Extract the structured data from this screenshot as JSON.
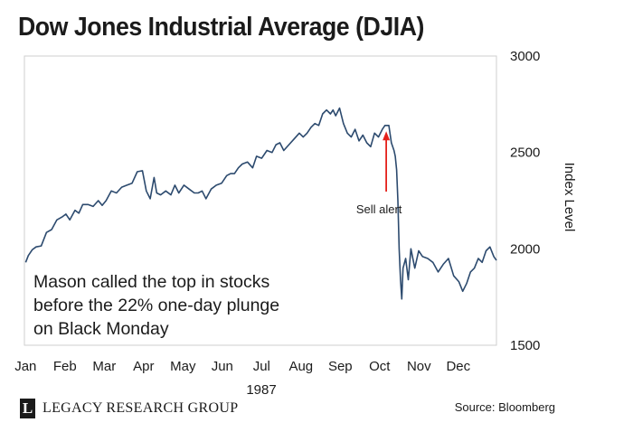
{
  "chart_data": {
    "type": "line",
    "title": "Dow Jones Industrial Average (DJIA)",
    "xlabel": "1987",
    "ylabel": "Index Level",
    "ylim": [
      1500,
      3000
    ],
    "yticks": [
      1500,
      2000,
      2500,
      3000
    ],
    "y_axis_side": "right",
    "months": [
      "Jan",
      "Feb",
      "Mar",
      "Apr",
      "May",
      "Jun",
      "Jul",
      "Aug",
      "Sep",
      "Oct",
      "Nov",
      "Dec"
    ],
    "x_unit": "day of year 1987 (1-365)",
    "grid": false,
    "legend": "none",
    "line_color": "#2c4a6e",
    "series": [
      {
        "name": "",
        "x": [
          2,
          4,
          7,
          10,
          14,
          18,
          22,
          26,
          30,
          33,
          36,
          40,
          43,
          46,
          50,
          54,
          58,
          61,
          64,
          68,
          72,
          76,
          80,
          84,
          88,
          92,
          95,
          98,
          101,
          103,
          106,
          110,
          114,
          117,
          120,
          124,
          128,
          132,
          135,
          138,
          141,
          145,
          149,
          153,
          157,
          160,
          163,
          166,
          169,
          173,
          177,
          180,
          184,
          188,
          192,
          195,
          198,
          201,
          205,
          209,
          213,
          216,
          219,
          222,
          225,
          228,
          231,
          234,
          237,
          239,
          241,
          244,
          247,
          250,
          253,
          256,
          259,
          262,
          265,
          268,
          271,
          274,
          277,
          279,
          282,
          284,
          286,
          287,
          288,
          289,
          290,
          291,
          292,
          293,
          295,
          297,
          299,
          302,
          305,
          308,
          312,
          316,
          320,
          324,
          328,
          332,
          336,
          339,
          342,
          345,
          348,
          351,
          354,
          357,
          360,
          363,
          365
        ],
        "values": [
          1930,
          1965,
          1995,
          2010,
          2015,
          2085,
          2100,
          2150,
          2165,
          2180,
          2150,
          2200,
          2185,
          2230,
          2230,
          2220,
          2250,
          2225,
          2250,
          2300,
          2290,
          2320,
          2330,
          2340,
          2400,
          2405,
          2300,
          2260,
          2370,
          2290,
          2280,
          2300,
          2280,
          2330,
          2290,
          2330,
          2310,
          2290,
          2290,
          2300,
          2260,
          2310,
          2330,
          2340,
          2380,
          2390,
          2390,
          2420,
          2440,
          2450,
          2420,
          2480,
          2470,
          2510,
          2500,
          2540,
          2550,
          2510,
          2540,
          2570,
          2600,
          2580,
          2600,
          2630,
          2650,
          2640,
          2700,
          2720,
          2700,
          2720,
          2690,
          2730,
          2650,
          2600,
          2580,
          2620,
          2560,
          2590,
          2550,
          2530,
          2600,
          2580,
          2620,
          2640,
          2640,
          2550,
          2510,
          2480,
          2410,
          2250,
          2000,
          1840,
          1740,
          1900,
          1950,
          1840,
          2000,
          1900,
          1990,
          1960,
          1950,
          1930,
          1880,
          1920,
          1950,
          1860,
          1830,
          1780,
          1820,
          1880,
          1900,
          1950,
          1930,
          1990,
          2010,
          1960,
          1940
        ]
      }
    ],
    "annotations": [
      {
        "text": "Sell alert",
        "x": 280,
        "y": 2610,
        "arrow_color": "#e4201a"
      }
    ],
    "callout": [
      "Mason called the top in stocks",
      "before the 22% one-day plunge",
      "on Black Monday"
    ]
  },
  "footer": {
    "logo_mark": "L",
    "brand": "LEGACY RESEARCH GROUP",
    "source": "Source: Bloomberg"
  }
}
